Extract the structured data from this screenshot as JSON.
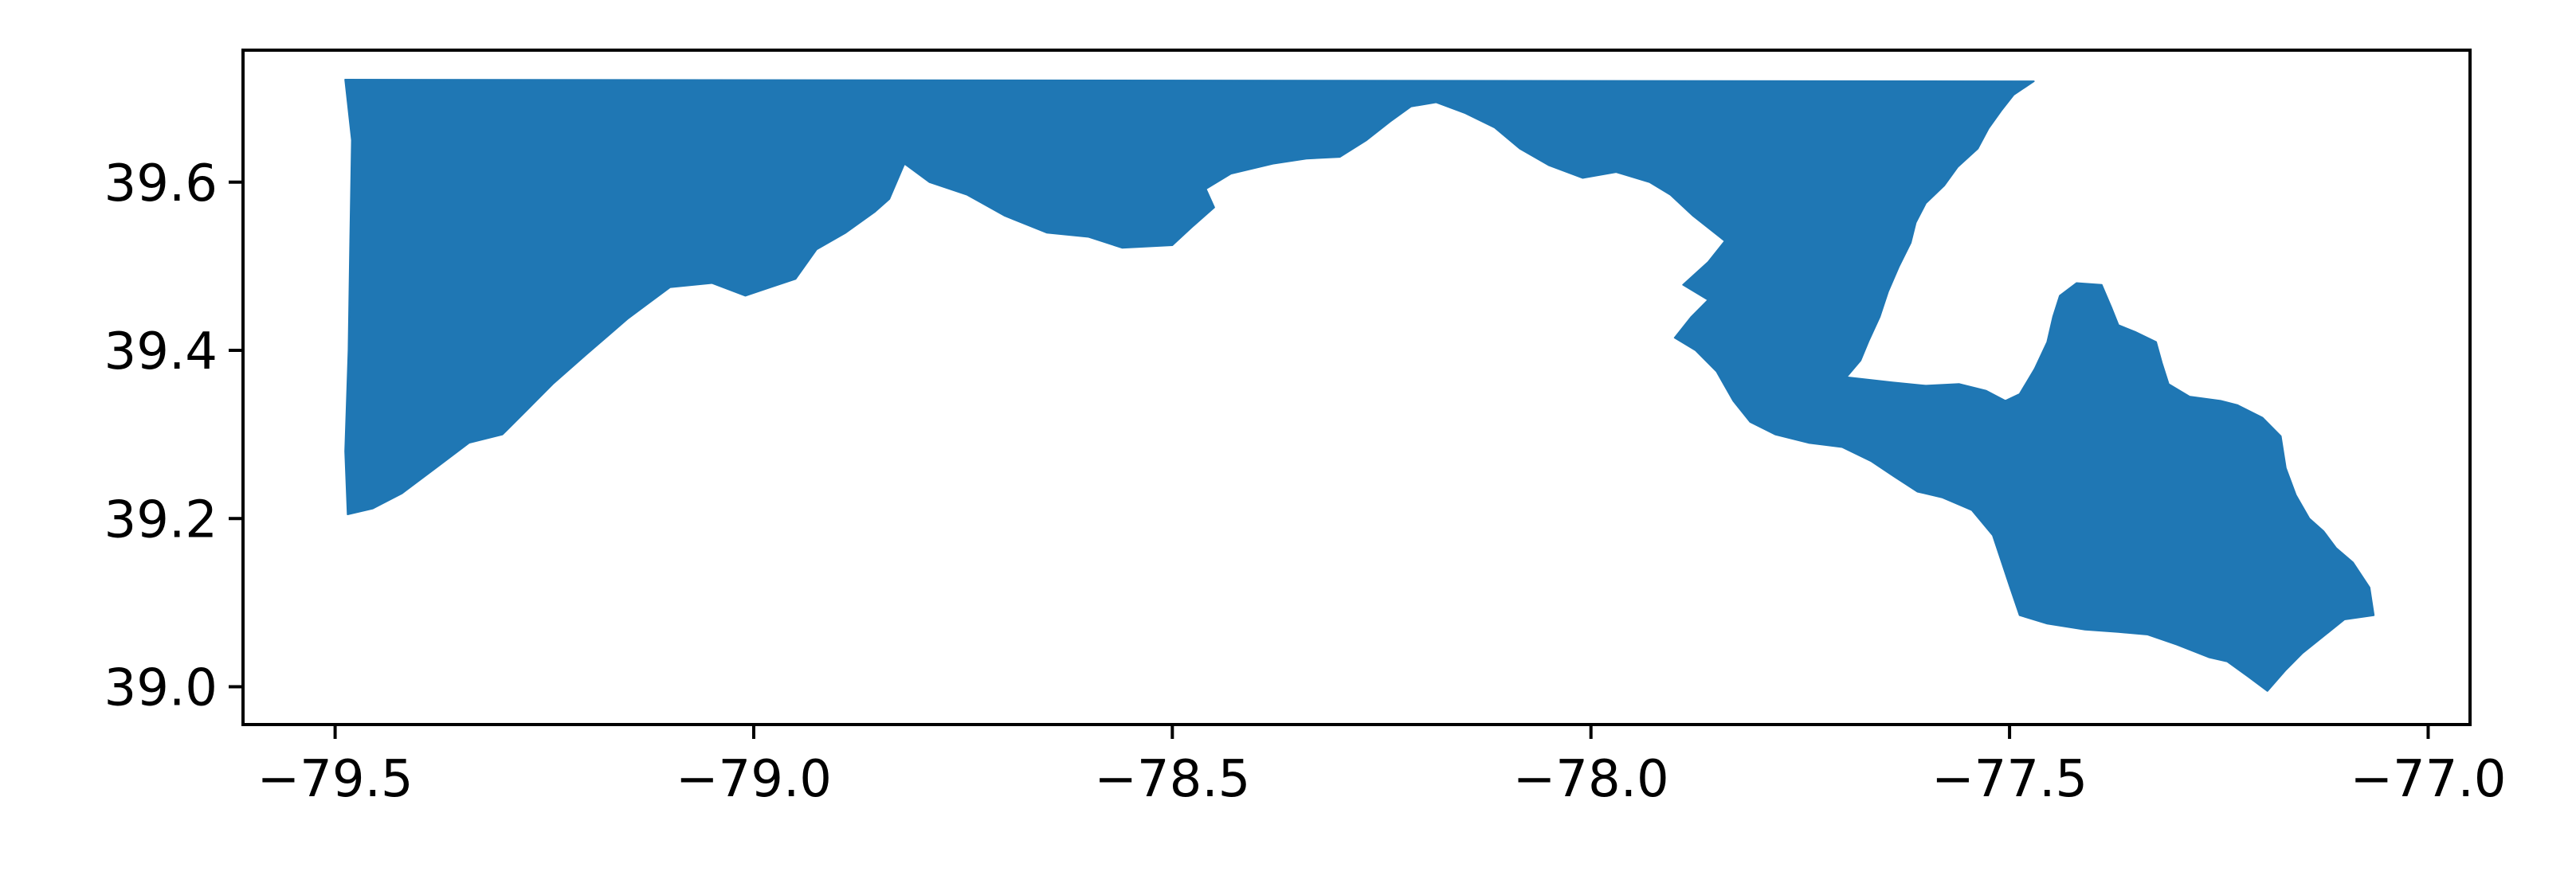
{
  "chart_data": {
    "type": "map",
    "title": "",
    "xlabel": "",
    "ylabel": "",
    "xlim": [
      -79.61,
      -76.95
    ],
    "ylim": [
      38.955,
      39.757
    ],
    "x_ticks": [
      -79.5,
      -79.0,
      -78.5,
      -78.0,
      -77.5,
      -77.0
    ],
    "y_ticks": [
      39.0,
      39.2,
      39.4,
      39.6
    ],
    "grid": false,
    "legend": "none",
    "fill_color": "#1f77b4",
    "regions": [
      {
        "coordinates": [
          [
            -79.488,
            39.722
          ],
          [
            -77.471,
            39.72
          ],
          [
            -77.495,
            39.704
          ],
          [
            -77.51,
            39.685
          ],
          [
            -77.525,
            39.664
          ],
          [
            -77.538,
            39.64
          ],
          [
            -77.562,
            39.618
          ],
          [
            -77.578,
            39.596
          ],
          [
            -77.6,
            39.575
          ],
          [
            -77.612,
            39.552
          ],
          [
            -77.618,
            39.528
          ],
          [
            -77.632,
            39.5
          ],
          [
            -77.645,
            39.47
          ],
          [
            -77.655,
            39.44
          ],
          [
            -77.668,
            39.412
          ],
          [
            -77.678,
            39.388
          ],
          [
            -77.695,
            39.368
          ],
          [
            -77.64,
            39.362
          ],
          [
            -77.6,
            39.358
          ],
          [
            -77.56,
            39.36
          ],
          [
            -77.528,
            39.352
          ],
          [
            -77.505,
            39.34
          ],
          [
            -77.488,
            39.348
          ],
          [
            -77.47,
            39.378
          ],
          [
            -77.455,
            39.41
          ],
          [
            -77.448,
            39.44
          ],
          [
            -77.44,
            39.465
          ],
          [
            -77.42,
            39.48
          ],
          [
            -77.39,
            39.478
          ],
          [
            -77.378,
            39.45
          ],
          [
            -77.37,
            39.43
          ],
          [
            -77.35,
            39.422
          ],
          [
            -77.325,
            39.41
          ],
          [
            -77.318,
            39.385
          ],
          [
            -77.31,
            39.36
          ],
          [
            -77.285,
            39.345
          ],
          [
            -77.248,
            39.34
          ],
          [
            -77.228,
            39.335
          ],
          [
            -77.198,
            39.32
          ],
          [
            -77.176,
            39.298
          ],
          [
            -77.17,
            39.26
          ],
          [
            -77.158,
            39.228
          ],
          [
            -77.142,
            39.2
          ],
          [
            -77.125,
            39.185
          ],
          [
            -77.11,
            39.165
          ],
          [
            -77.09,
            39.148
          ],
          [
            -77.07,
            39.118
          ],
          [
            -77.065,
            39.085
          ],
          [
            -77.1,
            39.08
          ],
          [
            -77.125,
            39.06
          ],
          [
            -77.15,
            39.04
          ],
          [
            -77.17,
            39.02
          ],
          [
            -77.192,
            38.995
          ],
          [
            -77.215,
            39.012
          ],
          [
            -77.24,
            39.03
          ],
          [
            -77.262,
            39.035
          ],
          [
            -77.3,
            39.05
          ],
          [
            -77.335,
            39.062
          ],
          [
            -77.37,
            39.065
          ],
          [
            -77.41,
            39.068
          ],
          [
            -77.455,
            39.075
          ],
          [
            -77.488,
            39.085
          ],
          [
            -77.5,
            39.12
          ],
          [
            -77.51,
            39.15
          ],
          [
            -77.52,
            39.18
          ],
          [
            -77.545,
            39.21
          ],
          [
            -77.58,
            39.225
          ],
          [
            -77.61,
            39.232
          ],
          [
            -77.638,
            39.25
          ],
          [
            -77.665,
            39.268
          ],
          [
            -77.7,
            39.285
          ],
          [
            -77.74,
            39.29
          ],
          [
            -77.78,
            39.3
          ],
          [
            -77.81,
            39.315
          ],
          [
            -77.83,
            39.34
          ],
          [
            -77.85,
            39.375
          ],
          [
            -77.875,
            39.4
          ],
          [
            -77.9,
            39.415
          ],
          [
            -77.88,
            39.44
          ],
          [
            -77.86,
            39.46
          ],
          [
            -77.89,
            39.478
          ],
          [
            -77.86,
            39.505
          ],
          [
            -77.84,
            39.53
          ],
          [
            -77.878,
            39.56
          ],
          [
            -77.905,
            39.585
          ],
          [
            -77.93,
            39.6
          ],
          [
            -77.97,
            39.612
          ],
          [
            -78.01,
            39.605
          ],
          [
            -78.05,
            39.62
          ],
          [
            -78.085,
            39.64
          ],
          [
            -78.115,
            39.665
          ],
          [
            -78.15,
            39.682
          ],
          [
            -78.185,
            39.695
          ],
          [
            -78.215,
            39.69
          ],
          [
            -78.24,
            39.672
          ],
          [
            -78.268,
            39.65
          ],
          [
            -78.3,
            39.63
          ],
          [
            -78.34,
            39.628
          ],
          [
            -78.38,
            39.622
          ],
          [
            -78.43,
            39.61
          ],
          [
            -78.46,
            39.592
          ],
          [
            -78.45,
            39.57
          ],
          [
            -78.475,
            39.548
          ],
          [
            -78.5,
            39.525
          ],
          [
            -78.56,
            39.522
          ],
          [
            -78.6,
            39.535
          ],
          [
            -78.65,
            39.54
          ],
          [
            -78.7,
            39.56
          ],
          [
            -78.745,
            39.585
          ],
          [
            -78.79,
            39.6
          ],
          [
            -78.82,
            39.622
          ],
          [
            -78.838,
            39.58
          ],
          [
            -78.855,
            39.565
          ],
          [
            -78.89,
            39.54
          ],
          [
            -78.925,
            39.52
          ],
          [
            -78.95,
            39.485
          ],
          [
            -78.98,
            39.475
          ],
          [
            -79.01,
            39.465
          ],
          [
            -79.05,
            39.48
          ],
          [
            -79.1,
            39.475
          ],
          [
            -79.15,
            39.438
          ],
          [
            -79.2,
            39.395
          ],
          [
            -79.24,
            39.36
          ],
          [
            -79.27,
            39.33
          ],
          [
            -79.3,
            39.3
          ],
          [
            -79.34,
            39.29
          ],
          [
            -79.38,
            39.26
          ],
          [
            -79.42,
            39.23
          ],
          [
            -79.455,
            39.212
          ],
          [
            -79.485,
            39.205
          ],
          [
            -79.488,
            39.28
          ],
          [
            -79.484,
            39.4
          ],
          [
            -79.482,
            39.53
          ],
          [
            -79.48,
            39.65
          ]
        ]
      }
    ]
  }
}
